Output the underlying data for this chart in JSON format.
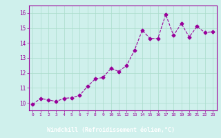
{
  "x": [
    0,
    1,
    2,
    3,
    4,
    5,
    6,
    7,
    8,
    9,
    10,
    11,
    12,
    13,
    14,
    15,
    16,
    17,
    18,
    19,
    20,
    21,
    22,
    23
  ],
  "y": [
    9.9,
    10.3,
    10.2,
    10.1,
    10.3,
    10.35,
    10.5,
    11.1,
    11.6,
    11.7,
    12.3,
    12.1,
    12.5,
    13.5,
    14.85,
    14.3,
    14.3,
    15.9,
    14.5,
    15.3,
    14.4,
    15.1,
    14.7,
    14.75
  ],
  "line_color": "#990099",
  "marker": "D",
  "marker_size": 2.5,
  "bg_color": "#cff0ec",
  "grid_color": "#aaddcc",
  "tick_color": "#990099",
  "ylim": [
    9.5,
    16.5
  ],
  "xlim": [
    -0.5,
    23.5
  ],
  "yticks": [
    10,
    11,
    12,
    13,
    14,
    15,
    16
  ],
  "xticks": [
    0,
    1,
    2,
    3,
    4,
    5,
    6,
    7,
    8,
    9,
    10,
    11,
    12,
    13,
    14,
    15,
    16,
    17,
    18,
    19,
    20,
    21,
    22,
    23
  ],
  "spine_color": "#990099",
  "xlabel": "Windchill (Refroidissement éolien,°C)",
  "xlabel_bg": "#880088",
  "xlabel_fg": "#ffffff"
}
